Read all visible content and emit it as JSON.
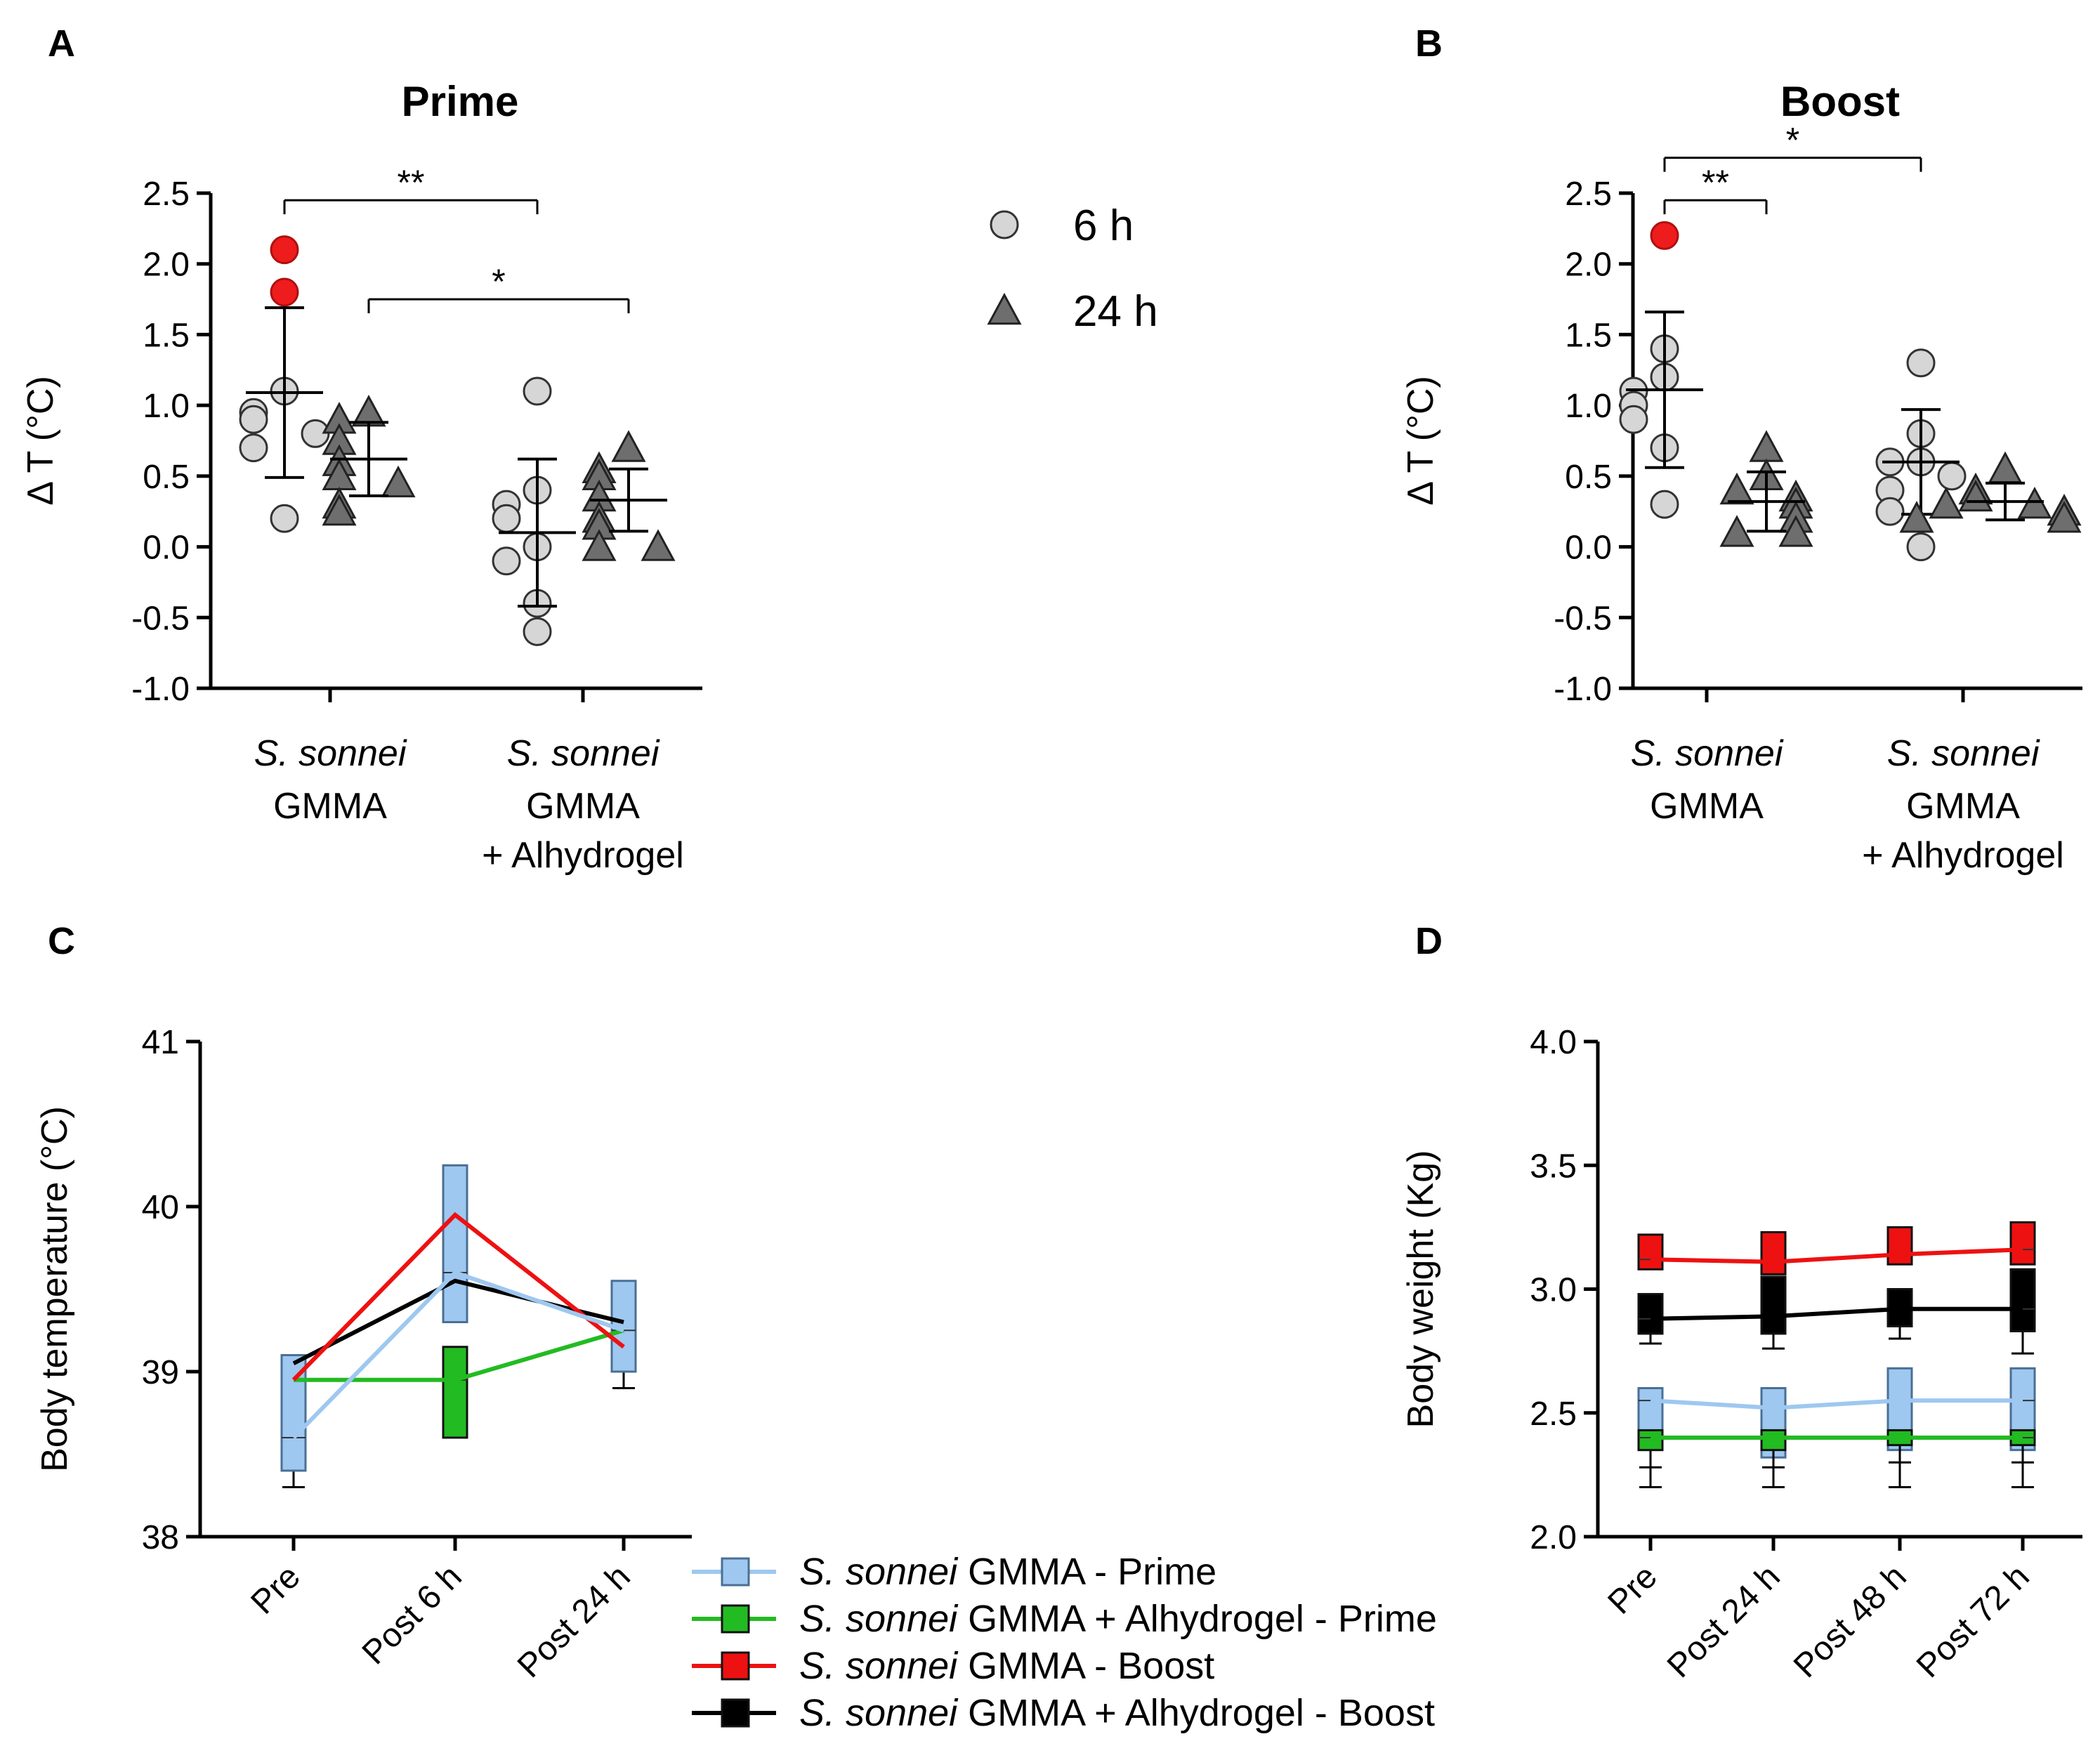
{
  "figure": {
    "panels": [
      {
        "id": "A",
        "letter": "A",
        "title": "Prime",
        "ylabel": "Δ T (°C)",
        "ylim": [
          -1.0,
          2.5
        ],
        "yticks": [
          "-1.0",
          "-0.5",
          "0.0",
          "0.5",
          "1.0",
          "1.5",
          "2.0",
          "2.5"
        ],
        "groups": [
          {
            "name_italic": "S. sonnei",
            "name_lines": [
              "GMMA"
            ],
            "points_6h": [
              2.1,
              1.8,
              1.1,
              0.95,
              0.9,
              0.8,
              0.7,
              0.2
            ],
            "highlight_6h": [
              2.1,
              1.8
            ],
            "mean_6h": 1.09,
            "sd_6h": 0.6,
            "points_24h": [
              0.95,
              0.9,
              0.75,
              0.6,
              0.5,
              0.45,
              0.3,
              0.25
            ],
            "mean_24h": 0.62,
            "sd_24h": 0.26
          },
          {
            "name_italic": "S. sonnei",
            "name_lines": [
              "GMMA",
              "+ Alhydrogel"
            ],
            "points_6h": [
              1.1,
              0.4,
              0.3,
              0.2,
              0.0,
              -0.1,
              -0.4,
              -0.6
            ],
            "highlight_6h": [],
            "mean_6h": 0.1,
            "sd_6h": 0.52,
            "points_24h": [
              0.7,
              0.55,
              0.5,
              0.35,
              0.2,
              0.15,
              0.0,
              0.0
            ],
            "mean_24h": 0.33,
            "sd_24h": 0.22
          }
        ],
        "significance": [
          {
            "from": "g1_6h",
            "to": "g2_6h",
            "label": "**",
            "y": 2.45
          },
          {
            "from": "g1_24h",
            "to": "g2_24h",
            "label": "*",
            "y": 1.75
          }
        ]
      },
      {
        "id": "B",
        "letter": "B",
        "title": "Boost",
        "ylabel": "Δ T (°C)",
        "ylim": [
          -1.0,
          2.5
        ],
        "yticks": [
          "-1.0",
          "-0.5",
          "0.0",
          "0.5",
          "1.0",
          "1.5",
          "2.0",
          "2.5"
        ],
        "groups": [
          {
            "name_italic": "S. sonnei",
            "name_lines": [
              "GMMA"
            ],
            "points_6h": [
              2.2,
              1.4,
              1.2,
              1.1,
              1.0,
              0.9,
              0.7,
              0.3
            ],
            "highlight_6h": [
              2.2
            ],
            "mean_6h": 1.11,
            "sd_6h": 0.55,
            "points_24h": [
              0.7,
              0.5,
              0.4,
              0.35,
              0.3,
              0.2,
              0.1,
              0.1
            ],
            "mean_24h": 0.32,
            "sd_24h": 0.21
          },
          {
            "name_italic": "S. sonnei",
            "name_lines": [
              "GMMA",
              "+ Alhydrogel"
            ],
            "points_6h": [
              1.3,
              0.8,
              0.6,
              0.6,
              0.5,
              0.4,
              0.25,
              0.0
            ],
            "highlight_6h": [],
            "mean_6h": 0.6,
            "sd_6h": 0.37,
            "points_24h": [
              0.55,
              0.4,
              0.35,
              0.3,
              0.3,
              0.25,
              0.2,
              0.2
            ],
            "mean_24h": 0.32,
            "sd_24h": 0.13
          }
        ],
        "significance": [
          {
            "from": "g1_6h",
            "to": "g1_24h",
            "label": "**",
            "y": 2.45
          },
          {
            "from": "g1_6h",
            "to": "g2_6h",
            "label": "*",
            "y": 2.75
          }
        ]
      }
    ],
    "point_legend": {
      "items": [
        {
          "label": "6 h",
          "marker": "circle",
          "color": "#d3d3d3"
        },
        {
          "label": "24 h",
          "marker": "triangle",
          "color": "#707070"
        }
      ]
    },
    "panel_c": {
      "letter": "C",
      "type": "line",
      "ylabel": "Body temperature (°C)",
      "ylim": [
        38,
        41
      ],
      "yticks": [
        "38",
        "39",
        "40",
        "41"
      ],
      "categories": [
        "Pre",
        "Post 6 h",
        "Post 24 h"
      ],
      "series": [
        {
          "name": "GMMA + Alhydrogel - Boost",
          "color": "#000000",
          "values": [
            39.05,
            39.55,
            39.3
          ],
          "box_low": [
            null,
            null,
            null
          ],
          "box_high": [
            null,
            null,
            null
          ],
          "err_low": [
            null,
            null,
            null
          ],
          "err_high": [
            null,
            null,
            null
          ]
        },
        {
          "name": "GMMA + Alhydrogel - Prime",
          "color": "#22bb22",
          "values": [
            38.95,
            38.95,
            39.25
          ],
          "box_low": [
            38.9,
            38.6,
            null
          ],
          "box_high": [
            39.1,
            39.15,
            null
          ],
          "err_low": [
            null,
            null,
            null
          ],
          "err_high": [
            null,
            null,
            null
          ]
        },
        {
          "name": "GMMA - Boost",
          "color": "#ee1111",
          "values": [
            38.95,
            39.95,
            39.15
          ],
          "box_low": [
            null,
            null,
            null
          ],
          "box_high": [
            null,
            null,
            null
          ],
          "err_low": [
            null,
            null,
            null
          ],
          "err_high": [
            null,
            null,
            null
          ]
        },
        {
          "name": "GMMA - Prime",
          "color": "#9ec8f0",
          "values": [
            38.6,
            39.6,
            39.25
          ],
          "box_low": [
            38.4,
            39.3,
            39.0
          ],
          "box_high": [
            39.1,
            40.25,
            39.55
          ],
          "err_low": [
            38.3,
            null,
            38.9
          ],
          "err_high": [
            null,
            null,
            null
          ]
        }
      ]
    },
    "panel_d": {
      "letter": "D",
      "type": "line",
      "ylabel": "Body weight (Kg)",
      "ylim": [
        2.0,
        4.0
      ],
      "yticks": [
        "2.0",
        "2.5",
        "3.0",
        "3.5",
        "4.0"
      ],
      "categories": [
        "Pre",
        "Post 24 h",
        "Post 48 h",
        "Post 72 h"
      ],
      "series": [
        {
          "name": "GMMA - Prime",
          "color": "#9ec8f0",
          "values": [
            2.55,
            2.52,
            2.55,
            2.55
          ],
          "box_low": [
            2.35,
            2.32,
            2.35,
            2.35
          ],
          "box_high": [
            2.6,
            2.6,
            2.68,
            2.68
          ],
          "err_low": [
            2.2,
            2.2,
            2.2,
            2.2
          ],
          "err_high": [
            null,
            null,
            null,
            null
          ]
        },
        {
          "name": "GMMA + Alhydrogel - Prime",
          "color": "#22bb22",
          "values": [
            2.4,
            2.4,
            2.4,
            2.4
          ],
          "box_low": [
            2.35,
            2.35,
            2.37,
            2.37
          ],
          "box_high": [
            2.43,
            2.43,
            2.43,
            2.43
          ],
          "err_low": [
            2.28,
            2.28,
            2.3,
            2.3
          ],
          "err_high": [
            null,
            null,
            null,
            null
          ]
        },
        {
          "name": "GMMA + Alhydrogel - Boost",
          "color": "#000000",
          "values": [
            2.88,
            2.89,
            2.92,
            2.92
          ],
          "box_low": [
            2.82,
            2.82,
            2.85,
            2.83
          ],
          "box_high": [
            2.98,
            3.05,
            3.0,
            3.08
          ],
          "err_low": [
            2.78,
            2.76,
            2.8,
            2.74
          ],
          "err_high": [
            null,
            null,
            null,
            null
          ]
        },
        {
          "name": "GMMA - Boost",
          "color": "#ee1111",
          "values": [
            3.12,
            3.11,
            3.14,
            3.16
          ],
          "box_low": [
            3.08,
            3.06,
            3.1,
            3.1
          ],
          "box_high": [
            3.22,
            3.23,
            3.25,
            3.27
          ],
          "err_low": [
            null,
            null,
            null,
            null
          ],
          "err_high": [
            null,
            null,
            null,
            null
          ]
        }
      ]
    },
    "line_legend": {
      "items": [
        {
          "italic": "S. sonnei",
          "rest": " GMMA - Prime",
          "color": "#9ec8f0"
        },
        {
          "italic": "S. sonnei",
          "rest": " GMMA + Alhydrogel - Prime",
          "color": "#22bb22"
        },
        {
          "italic": "S. sonnei",
          "rest": " GMMA - Boost",
          "color": "#ee1111"
        },
        {
          "italic": "S. sonnei",
          "rest": " GMMA + Alhydrogel - Boost",
          "color": "#000000"
        }
      ]
    }
  },
  "chart_data": [
    {
      "type": "scatter",
      "title": "Prime",
      "ylabel": "Δ T (°C)",
      "ylim": [
        -1.0,
        2.5
      ],
      "categories": [
        "S. sonnei GMMA",
        "S. sonnei GMMA + Alhydrogel"
      ],
      "series": [
        {
          "name": "6 h",
          "values": [
            [
              2.1,
              1.8,
              1.1,
              0.95,
              0.9,
              0.8,
              0.7,
              0.2
            ],
            [
              1.1,
              0.4,
              0.3,
              0.2,
              0.0,
              -0.1,
              -0.4,
              -0.6
            ]
          ]
        },
        {
          "name": "24 h",
          "values": [
            [
              0.95,
              0.9,
              0.75,
              0.6,
              0.5,
              0.45,
              0.3,
              0.25
            ],
            [
              0.7,
              0.55,
              0.5,
              0.35,
              0.2,
              0.15,
              0.0,
              0.0
            ]
          ]
        }
      ]
    },
    {
      "type": "scatter",
      "title": "Boost",
      "ylabel": "Δ T (°C)",
      "ylim": [
        -1.0,
        2.5
      ],
      "categories": [
        "S. sonnei GMMA",
        "S. sonnei GMMA + Alhydrogel"
      ],
      "series": [
        {
          "name": "6 h",
          "values": [
            [
              2.2,
              1.4,
              1.2,
              1.1,
              1.0,
              0.9,
              0.7,
              0.3
            ],
            [
              1.3,
              0.8,
              0.6,
              0.6,
              0.5,
              0.4,
              0.25,
              0.0
            ]
          ]
        },
        {
          "name": "24 h",
          "values": [
            [
              0.7,
              0.5,
              0.4,
              0.35,
              0.3,
              0.2,
              0.1,
              0.1
            ],
            [
              0.55,
              0.4,
              0.35,
              0.3,
              0.3,
              0.25,
              0.2,
              0.2
            ]
          ]
        }
      ]
    },
    {
      "type": "line",
      "title": "",
      "ylabel": "Body temperature (°C)",
      "ylim": [
        38,
        41
      ],
      "categories": [
        "Pre",
        "Post 6 h",
        "Post 24 h"
      ],
      "series": [
        {
          "name": "S. sonnei GMMA - Prime",
          "values": [
            38.6,
            39.6,
            39.25
          ]
        },
        {
          "name": "S. sonnei GMMA + Alhydrogel - Prime",
          "values": [
            38.95,
            38.95,
            39.25
          ]
        },
        {
          "name": "S. sonnei GMMA - Boost",
          "values": [
            38.95,
            39.95,
            39.15
          ]
        },
        {
          "name": "S. sonnei GMMA + Alhydrogel - Boost",
          "values": [
            39.05,
            39.55,
            39.3
          ]
        }
      ]
    },
    {
      "type": "line",
      "title": "",
      "ylabel": "Body weight (Kg)",
      "ylim": [
        2.0,
        4.0
      ],
      "categories": [
        "Pre",
        "Post 24 h",
        "Post 48 h",
        "Post 72 h"
      ],
      "series": [
        {
          "name": "S. sonnei GMMA - Prime",
          "values": [
            2.55,
            2.52,
            2.55,
            2.55
          ]
        },
        {
          "name": "S. sonnei GMMA + Alhydrogel - Prime",
          "values": [
            2.4,
            2.4,
            2.4,
            2.4
          ]
        },
        {
          "name": "S. sonnei GMMA - Boost",
          "values": [
            3.12,
            3.11,
            3.14,
            3.16
          ]
        },
        {
          "name": "S. sonnei GMMA + Alhydrogel - Boost",
          "values": [
            2.88,
            2.89,
            2.92,
            2.92
          ]
        }
      ]
    }
  ]
}
